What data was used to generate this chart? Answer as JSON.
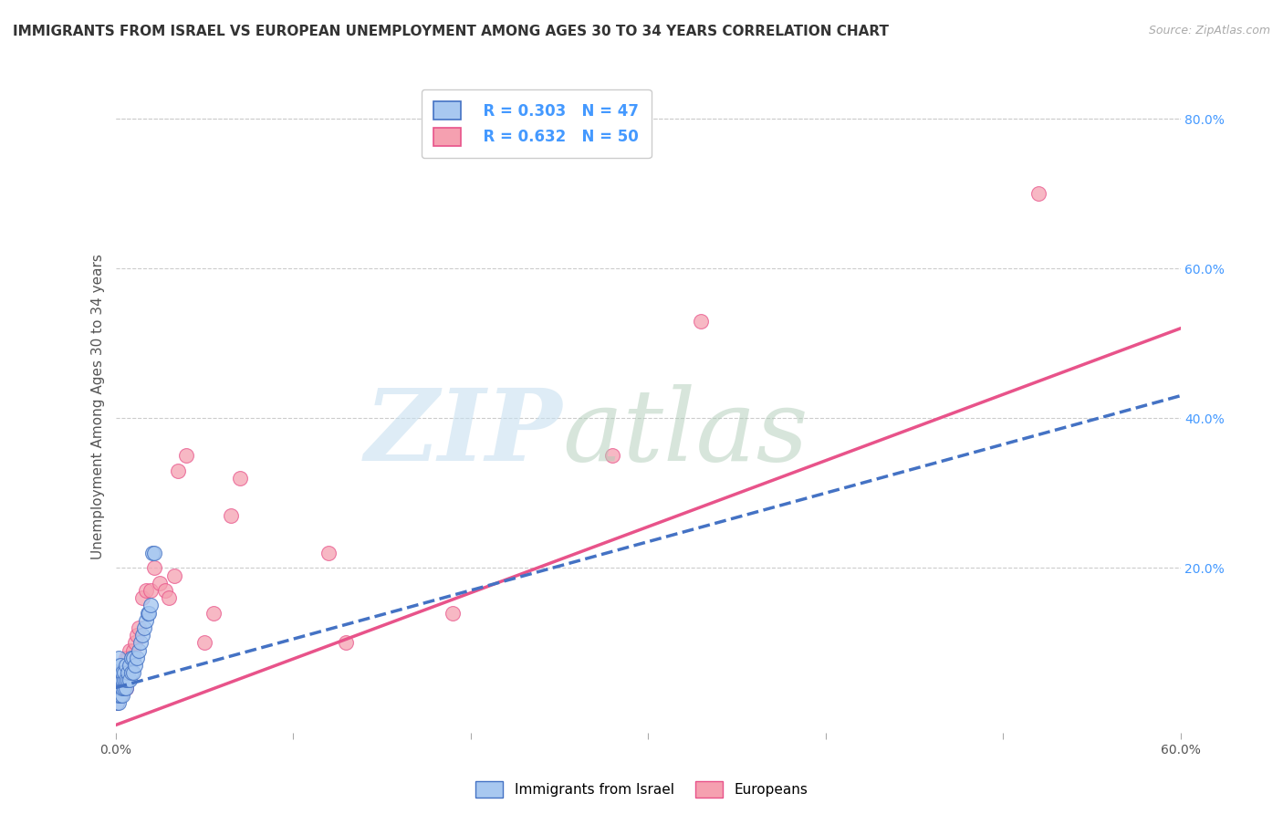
{
  "title": "IMMIGRANTS FROM ISRAEL VS EUROPEAN UNEMPLOYMENT AMONG AGES 30 TO 34 YEARS CORRELATION CHART",
  "source": "Source: ZipAtlas.com",
  "ylabel": "Unemployment Among Ages 30 to 34 years",
  "xlim": [
    0.0,
    0.6
  ],
  "ylim": [
    -0.02,
    0.85
  ],
  "yticks_right": [
    0.2,
    0.4,
    0.6,
    0.8
  ],
  "ytick_labels_right": [
    "20.0%",
    "40.0%",
    "60.0%",
    "80.0%"
  ],
  "xtick_positions": [
    0.0,
    0.1,
    0.2,
    0.3,
    0.4,
    0.5,
    0.6
  ],
  "xtick_labels": [
    "0.0%",
    "",
    "",
    "",
    "",
    "",
    "60.0%"
  ],
  "israel_R": 0.303,
  "israel_N": 47,
  "european_R": 0.632,
  "european_N": 50,
  "israel_color": "#a8c8f0",
  "european_color": "#f5a0b0",
  "israel_line_color": "#4472c4",
  "european_line_color": "#e8538a",
  "background_color": "#ffffff",
  "grid_color": "#cccccc",
  "title_fontsize": 11,
  "axis_label_fontsize": 11,
  "tick_fontsize": 10,
  "legend_fontsize": 12,
  "israel_x": [
    0.001,
    0.001,
    0.001,
    0.001,
    0.001,
    0.002,
    0.002,
    0.002,
    0.002,
    0.002,
    0.002,
    0.002,
    0.003,
    0.003,
    0.003,
    0.003,
    0.003,
    0.004,
    0.004,
    0.004,
    0.004,
    0.005,
    0.005,
    0.005,
    0.006,
    0.006,
    0.006,
    0.007,
    0.007,
    0.008,
    0.008,
    0.009,
    0.009,
    0.01,
    0.01,
    0.011,
    0.012,
    0.013,
    0.014,
    0.015,
    0.016,
    0.017,
    0.018,
    0.019,
    0.02,
    0.021,
    0.022
  ],
  "israel_y": [
    0.02,
    0.03,
    0.04,
    0.05,
    0.06,
    0.02,
    0.03,
    0.04,
    0.05,
    0.06,
    0.07,
    0.08,
    0.03,
    0.04,
    0.05,
    0.06,
    0.07,
    0.03,
    0.04,
    0.05,
    0.06,
    0.04,
    0.05,
    0.06,
    0.04,
    0.05,
    0.07,
    0.05,
    0.06,
    0.05,
    0.07,
    0.06,
    0.08,
    0.06,
    0.08,
    0.07,
    0.08,
    0.09,
    0.1,
    0.11,
    0.12,
    0.13,
    0.14,
    0.14,
    0.15,
    0.22,
    0.22
  ],
  "european_x": [
    0.001,
    0.001,
    0.001,
    0.001,
    0.002,
    0.002,
    0.002,
    0.002,
    0.003,
    0.003,
    0.003,
    0.003,
    0.004,
    0.004,
    0.004,
    0.005,
    0.005,
    0.005,
    0.006,
    0.006,
    0.006,
    0.007,
    0.007,
    0.008,
    0.008,
    0.009,
    0.01,
    0.011,
    0.012,
    0.013,
    0.015,
    0.017,
    0.02,
    0.022,
    0.025,
    0.028,
    0.03,
    0.033,
    0.035,
    0.04,
    0.05,
    0.055,
    0.065,
    0.07,
    0.12,
    0.13,
    0.19,
    0.28,
    0.33,
    0.52
  ],
  "european_y": [
    0.02,
    0.03,
    0.04,
    0.05,
    0.03,
    0.04,
    0.05,
    0.06,
    0.03,
    0.04,
    0.05,
    0.06,
    0.04,
    0.05,
    0.06,
    0.04,
    0.05,
    0.07,
    0.04,
    0.06,
    0.08,
    0.06,
    0.08,
    0.07,
    0.09,
    0.08,
    0.09,
    0.1,
    0.11,
    0.12,
    0.16,
    0.17,
    0.17,
    0.2,
    0.18,
    0.17,
    0.16,
    0.19,
    0.33,
    0.35,
    0.1,
    0.14,
    0.27,
    0.32,
    0.22,
    0.1,
    0.14,
    0.35,
    0.53,
    0.7
  ],
  "israel_trend_x": [
    0.0,
    0.6
  ],
  "israel_trend_y": [
    0.04,
    0.43
  ],
  "european_trend_x": [
    0.0,
    0.6
  ],
  "european_trend_y": [
    -0.01,
    0.52
  ]
}
